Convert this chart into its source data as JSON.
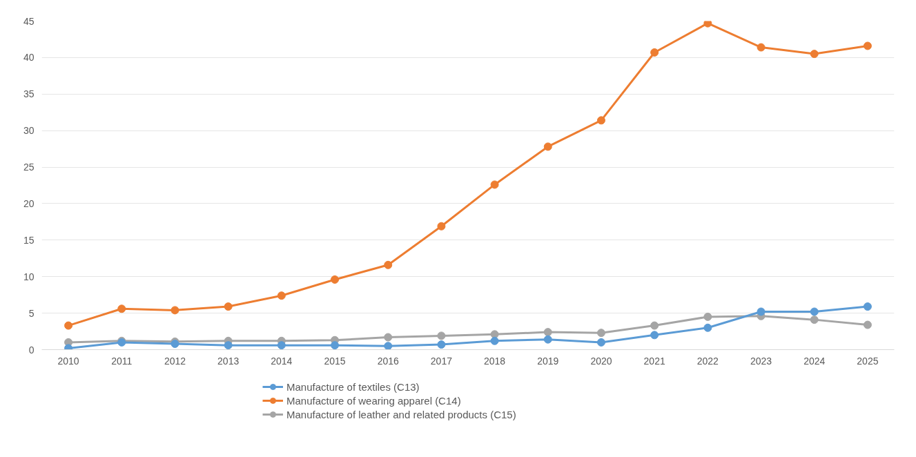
{
  "chart_data": {
    "type": "line",
    "categories": [
      "2010",
      "2011",
      "2012",
      "2013",
      "2014",
      "2015",
      "2016",
      "2017",
      "2018",
      "2019",
      "2020",
      "2021",
      "2022",
      "2023",
      "2024",
      "2025"
    ],
    "series": [
      {
        "name": "Manufacture of textiles (C13)",
        "color": "#5b9bd5",
        "values": [
          0.2,
          1.0,
          0.8,
          0.6,
          0.6,
          0.6,
          0.5,
          0.7,
          1.2,
          1.4,
          1.0,
          2.0,
          3.0,
          5.2,
          5.2,
          5.9
        ]
      },
      {
        "name": "Manufacture of wearing apparel (C14)",
        "color": "#ed7d31",
        "values": [
          3.3,
          5.6,
          5.4,
          5.9,
          7.4,
          9.6,
          11.6,
          16.9,
          22.6,
          27.8,
          31.4,
          40.7,
          44.7,
          41.4,
          40.5,
          41.6
        ]
      },
      {
        "name": "Manufacture of leather and related products (C15)",
        "color": "#a5a5a5",
        "values": [
          1.0,
          1.2,
          1.1,
          1.2,
          1.2,
          1.3,
          1.7,
          1.9,
          2.1,
          2.4,
          2.3,
          3.3,
          4.5,
          4.6,
          4.1,
          3.4
        ]
      }
    ],
    "ylim": [
      0,
      45
    ],
    "yticks": [
      0,
      5,
      10,
      15,
      20,
      25,
      30,
      35,
      40,
      45
    ],
    "grid": "y",
    "legend": "bottom",
    "marker": "circle",
    "line_style": "solid"
  }
}
